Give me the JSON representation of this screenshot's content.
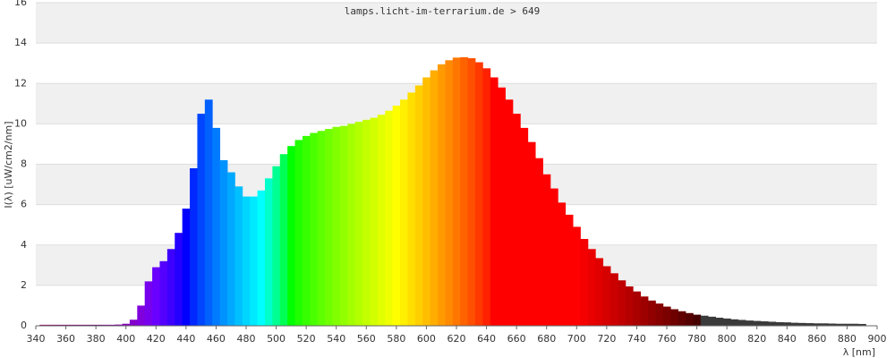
{
  "chart_data": {
    "type": "spectrum",
    "title": "lamps.licht-im-terrarium.de > 649",
    "y_label": "I(λ)  [uW/cm2/nm]",
    "x_label": "λ [nm]",
    "xlim": [
      340,
      900
    ],
    "ylim": [
      0,
      16
    ],
    "xticks": [
      340,
      360,
      380,
      400,
      420,
      440,
      460,
      480,
      500,
      520,
      540,
      560,
      580,
      600,
      620,
      640,
      660,
      680,
      700,
      720,
      740,
      760,
      780,
      800,
      820,
      840,
      860,
      880,
      900
    ],
    "yticks": [
      0,
      2,
      4,
      6,
      8,
      10,
      12,
      14,
      16
    ],
    "grid": true,
    "x": [
      345,
      350,
      355,
      360,
      365,
      370,
      375,
      380,
      385,
      390,
      395,
      400,
      405,
      410,
      415,
      420,
      425,
      430,
      435,
      440,
      445,
      450,
      455,
      460,
      465,
      470,
      475,
      480,
      485,
      490,
      495,
      500,
      505,
      510,
      515,
      520,
      525,
      530,
      535,
      540,
      545,
      550,
      555,
      560,
      565,
      570,
      575,
      580,
      585,
      590,
      595,
      600,
      605,
      610,
      615,
      620,
      625,
      630,
      635,
      640,
      645,
      650,
      655,
      660,
      665,
      670,
      675,
      680,
      685,
      690,
      695,
      700,
      705,
      710,
      715,
      720,
      725,
      730,
      735,
      740,
      745,
      750,
      755,
      760,
      765,
      770,
      775,
      780,
      785,
      790,
      795,
      800,
      805,
      810,
      815,
      820,
      825,
      830,
      835,
      840,
      845,
      850,
      855,
      860,
      865,
      870,
      875,
      880,
      885,
      890
    ],
    "series": [
      {
        "values": [
          0.05,
          0.05,
          0.05,
          0.05,
          0.05,
          0.05,
          0.05,
          0.05,
          0.05,
          0.05,
          0.06,
          0.1,
          0.3,
          1.0,
          2.2,
          2.9,
          3.2,
          3.8,
          4.6,
          5.8,
          7.8,
          10.5,
          11.2,
          9.8,
          8.2,
          7.6,
          6.9,
          6.4,
          6.4,
          6.7,
          7.3,
          7.9,
          8.5,
          8.9,
          9.2,
          9.4,
          9.55,
          9.65,
          9.75,
          9.85,
          9.9,
          10.0,
          10.1,
          10.2,
          10.3,
          10.45,
          10.65,
          10.9,
          11.2,
          11.55,
          11.9,
          12.3,
          12.65,
          12.95,
          13.15,
          13.28,
          13.3,
          13.25,
          13.05,
          12.75,
          12.3,
          11.8,
          11.2,
          10.5,
          9.8,
          9.1,
          8.3,
          7.5,
          6.8,
          6.1,
          5.5,
          4.9,
          4.3,
          3.8,
          3.35,
          2.95,
          2.6,
          2.25,
          1.95,
          1.7,
          1.45,
          1.25,
          1.1,
          0.95,
          0.82,
          0.72,
          0.63,
          0.55,
          0.5,
          0.45,
          0.4,
          0.36,
          0.32,
          0.29,
          0.26,
          0.24,
          0.22,
          0.2,
          0.18,
          0.17,
          0.15,
          0.14,
          0.13,
          0.12,
          0.12,
          0.11,
          0.1,
          0.1,
          0.1,
          0.09
        ]
      }
    ]
  }
}
